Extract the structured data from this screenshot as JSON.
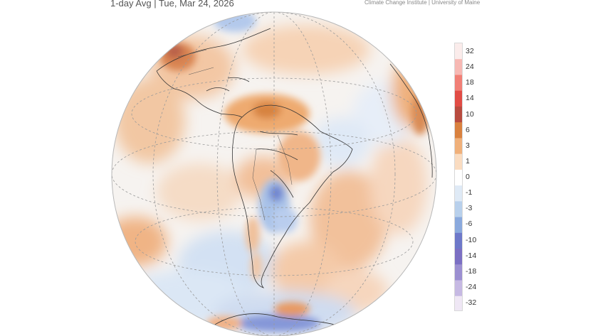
{
  "header": {
    "subtitle": "1-day Avg | Tue, Mar 24, 2026",
    "credit": "Climate Change Institute | University of Maine"
  },
  "map": {
    "projection": "orthographic",
    "center": "South America",
    "variable": "temperature anomaly"
  },
  "legend": {
    "labels": [
      "32",
      "24",
      "18",
      "14",
      "10",
      "6",
      "3",
      "1",
      "0",
      "-1",
      "-3",
      "-6",
      "-10",
      "-14",
      "-18",
      "-24",
      "-32"
    ],
    "colors": [
      "#fbeceb",
      "#f7b8b3",
      "#f17f76",
      "#e14c45",
      "#b84b3f",
      "#d9813f",
      "#f0b07a",
      "#fadcc1",
      "#ffffff",
      "#dfeaf6",
      "#b8d0ec",
      "#8aa9dd",
      "#6d78c9",
      "#7b6fc3",
      "#9b8fd1",
      "#c6b9e3",
      "#efe7f5"
    ]
  }
}
